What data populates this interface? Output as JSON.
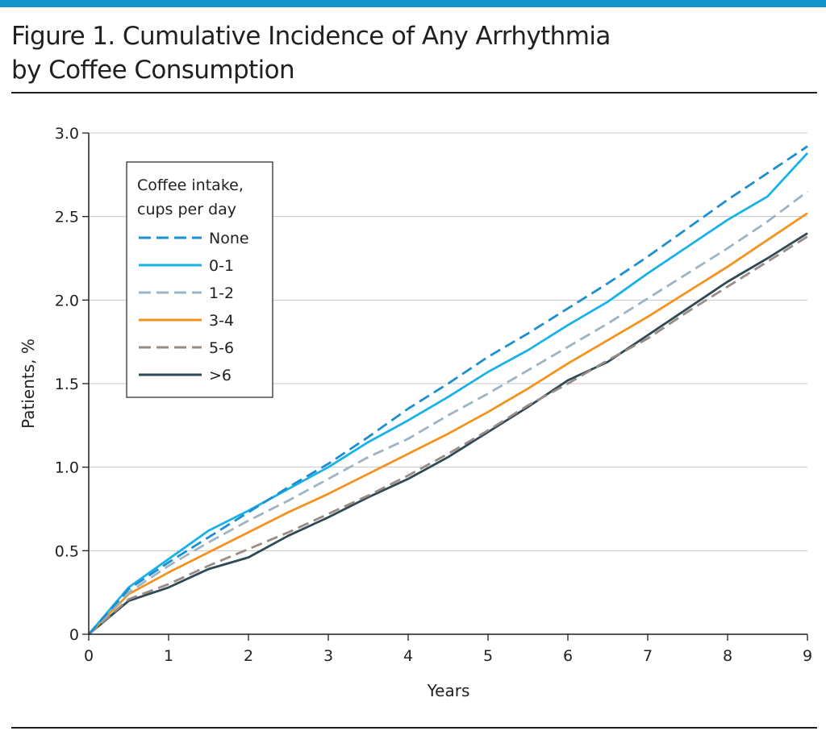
{
  "header": {
    "title_line1": "Figure 1. Cumulative Incidence of Any Arrhythmia",
    "title_line2": "by Coffee Consumption"
  },
  "colors": {
    "accent_bar": "#0f93c9",
    "grid": "#c8c8c8",
    "axis": "#231f20"
  },
  "chart_data": {
    "type": "line",
    "title": "Figure 1. Cumulative Incidence of Any Arrhythmia by Coffee Consumption",
    "xlabel": "Years",
    "ylabel": "Patients, %",
    "xlim": [
      0,
      9
    ],
    "ylim": [
      0,
      3.0
    ],
    "x_ticks": [
      "0",
      "1",
      "2",
      "3",
      "4",
      "5",
      "6",
      "7",
      "8",
      "9"
    ],
    "y_ticks": [
      "0",
      "0.5",
      "1.0",
      "1.5",
      "2.0",
      "2.5",
      "3.0"
    ],
    "y_tick_values": [
      0,
      0.5,
      1.0,
      1.5,
      2.0,
      2.5,
      3.0
    ],
    "grid": "horizontal",
    "legend": {
      "title_line1": "Coffee intake,",
      "title_line2": "cups per day",
      "placement": "top-left"
    },
    "x": [
      0,
      0.5,
      1,
      1.5,
      2,
      2.5,
      3,
      3.5,
      4,
      4.5,
      5,
      5.5,
      6,
      6.5,
      7,
      7.5,
      8,
      8.5,
      9
    ],
    "series": [
      {
        "name": "None",
        "color": "#1c8fd0",
        "dash": "dashed",
        "values": [
          0,
          0.27,
          0.43,
          0.58,
          0.73,
          0.88,
          1.02,
          1.18,
          1.35,
          1.5,
          1.66,
          1.8,
          1.95,
          2.1,
          2.26,
          2.43,
          2.6,
          2.76,
          2.92
        ]
      },
      {
        "name": "0-1",
        "color": "#19b2e8",
        "dash": "solid",
        "values": [
          0,
          0.28,
          0.45,
          0.62,
          0.74,
          0.87,
          1.0,
          1.15,
          1.28,
          1.42,
          1.57,
          1.7,
          1.85,
          1.99,
          2.16,
          2.32,
          2.48,
          2.62,
          2.88
        ]
      },
      {
        "name": "1-2",
        "color": "#9cb4c4",
        "dash": "dashed",
        "values": [
          0,
          0.25,
          0.41,
          0.55,
          0.68,
          0.8,
          0.93,
          1.06,
          1.17,
          1.31,
          1.44,
          1.58,
          1.72,
          1.86,
          2.01,
          2.16,
          2.31,
          2.47,
          2.65
        ]
      },
      {
        "name": "3-4",
        "color": "#f4921e",
        "dash": "solid",
        "values": [
          0,
          0.24,
          0.37,
          0.49,
          0.61,
          0.73,
          0.84,
          0.96,
          1.08,
          1.2,
          1.33,
          1.47,
          1.62,
          1.76,
          1.9,
          2.05,
          2.2,
          2.36,
          2.52
        ]
      },
      {
        "name": "5-6",
        "color": "#9a8b84",
        "dash": "dashed",
        "values": [
          0,
          0.21,
          0.3,
          0.41,
          0.51,
          0.61,
          0.72,
          0.83,
          0.95,
          1.08,
          1.22,
          1.37,
          1.5,
          1.64,
          1.77,
          1.93,
          2.08,
          2.23,
          2.38
        ]
      },
      {
        "name": ">6",
        "color": "#2e4a55",
        "dash": "solid",
        "values": [
          0,
          0.2,
          0.28,
          0.39,
          0.46,
          0.59,
          0.7,
          0.82,
          0.93,
          1.06,
          1.21,
          1.36,
          1.52,
          1.63,
          1.79,
          1.95,
          2.11,
          2.25,
          2.4
        ]
      }
    ]
  }
}
